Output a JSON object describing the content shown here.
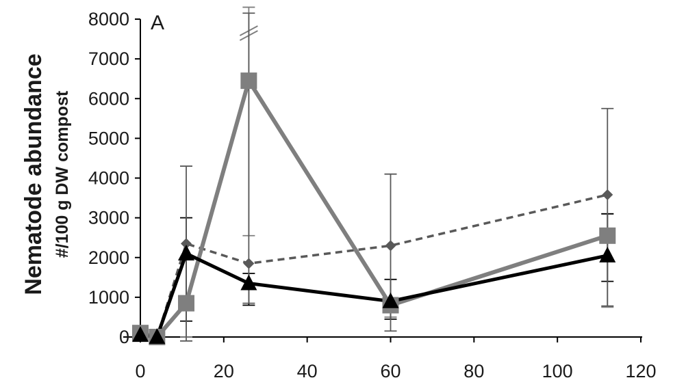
{
  "chart_data": {
    "type": "line",
    "panel_label": "A",
    "ylabel_main": "Nematode abundance",
    "ylabel_sub": "#/100 g DW compost",
    "xlabel": "",
    "xlim": [
      0,
      120
    ],
    "ylim": [
      0,
      8000
    ],
    "x_ticks": [
      "0",
      "20",
      "40",
      "60",
      "80",
      "100",
      "120"
    ],
    "y_ticks": [
      "0",
      "1000",
      "2000",
      "3000",
      "4000",
      "5000",
      "6000",
      "7000",
      "8000"
    ],
    "grid": false,
    "colors": {
      "square": "#7f7f7f",
      "triangle": "#000000",
      "diamond": "#595959"
    },
    "series": [
      {
        "marker": "square",
        "line": "solid-gray",
        "x": [
          0,
          4,
          11,
          26,
          60,
          112
        ],
        "y": [
          100,
          0,
          850,
          6450,
          800,
          2550
        ],
        "err_low": [
          100,
          0,
          850,
          3900,
          300,
          1800
        ],
        "err_high": [
          0,
          0,
          2150,
          1950,
          650,
          550
        ],
        "axis_break_at_x": 26
      },
      {
        "marker": "triangle",
        "line": "solid-black",
        "x": [
          0,
          4,
          11,
          26,
          60,
          112
        ],
        "y": [
          50,
          0,
          2100,
          1350,
          900,
          2050
        ],
        "err_low": [
          50,
          0,
          1700,
          550,
          450,
          650
        ],
        "err_high": [
          0,
          0,
          900,
          250,
          550,
          1050
        ]
      },
      {
        "marker": "diamond",
        "line": "dashed-gray",
        "x": [
          0,
          4,
          11,
          26,
          60,
          112
        ],
        "y": [
          50,
          0,
          2350,
          1850,
          2300,
          3580
        ],
        "err_low": [
          50,
          0,
          2450,
          1000,
          2150,
          2800
        ],
        "err_high": [
          0,
          0,
          1950,
          6300,
          1800,
          2170
        ]
      }
    ]
  }
}
